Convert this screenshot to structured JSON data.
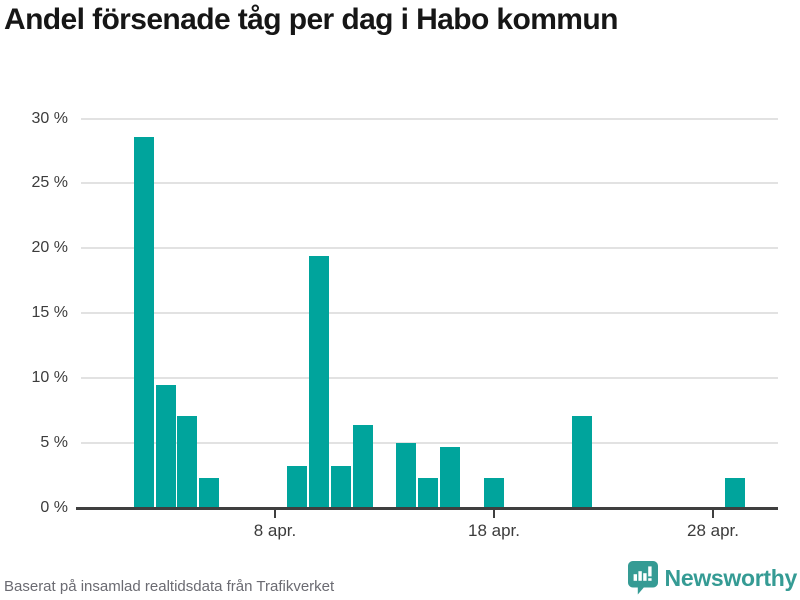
{
  "title": "Andel försenade tåg per dag i Habo kommun",
  "footer": {
    "source": "Baserat på insamlad realtidsdata från Trafikverket",
    "brand": "Newsworthy"
  },
  "colors": {
    "bar": "#00a49c",
    "brand_teal": "#359b94",
    "title_text": "#161616",
    "axis_line": "#3f3f3f",
    "grid_line": "#e2e2e2",
    "tick_text": "#3c3c3c",
    "source_text": "#6b6b72",
    "background": "#ffffff"
  },
  "chart_data": {
    "type": "bar",
    "title": "Andel försenade tåg per dag i Habo kommun",
    "xlabel": "",
    "ylabel": "",
    "unit": "%",
    "ylim": [
      0,
      30
    ],
    "grid": true,
    "y_axis_ticks": [
      {
        "value": 30,
        "label": "30 %"
      },
      {
        "value": 25,
        "label": "25 %"
      },
      {
        "value": 20,
        "label": "20 %"
      },
      {
        "value": 15,
        "label": "15 %"
      },
      {
        "value": 10,
        "label": "10 %"
      },
      {
        "value": 5,
        "label": "5 %"
      },
      {
        "value": 0,
        "label": "0 %"
      }
    ],
    "x_axis_ticks": [
      {
        "day": 8,
        "label": "8 apr."
      },
      {
        "day": 18,
        "label": "18 apr."
      },
      {
        "day": 28,
        "label": "28 apr."
      }
    ],
    "points": [
      {
        "day": 2,
        "label": "2 apr.",
        "value": 28.6
      },
      {
        "day": 3,
        "label": "3 apr.",
        "value": 9.5
      },
      {
        "day": 4,
        "label": "4 apr.",
        "value": 7.1
      },
      {
        "day": 5,
        "label": "5 apr.",
        "value": 2.3
      },
      {
        "day": 9,
        "label": "9 apr.",
        "value": 3.2
      },
      {
        "day": 10,
        "label": "10 apr.",
        "value": 19.4
      },
      {
        "day": 11,
        "label": "11 apr.",
        "value": 3.2
      },
      {
        "day": 12,
        "label": "12 apr.",
        "value": 6.4
      },
      {
        "day": 14,
        "label": "14 apr.",
        "value": 5.0
      },
      {
        "day": 15,
        "label": "15 apr.",
        "value": 2.3
      },
      {
        "day": 16,
        "label": "16 apr.",
        "value": 4.7
      },
      {
        "day": 18,
        "label": "18 apr.",
        "value": 2.3
      },
      {
        "day": 22,
        "label": "22 apr.",
        "value": 7.1
      },
      {
        "day": 29,
        "label": "29 apr.",
        "value": 2.3
      }
    ]
  }
}
